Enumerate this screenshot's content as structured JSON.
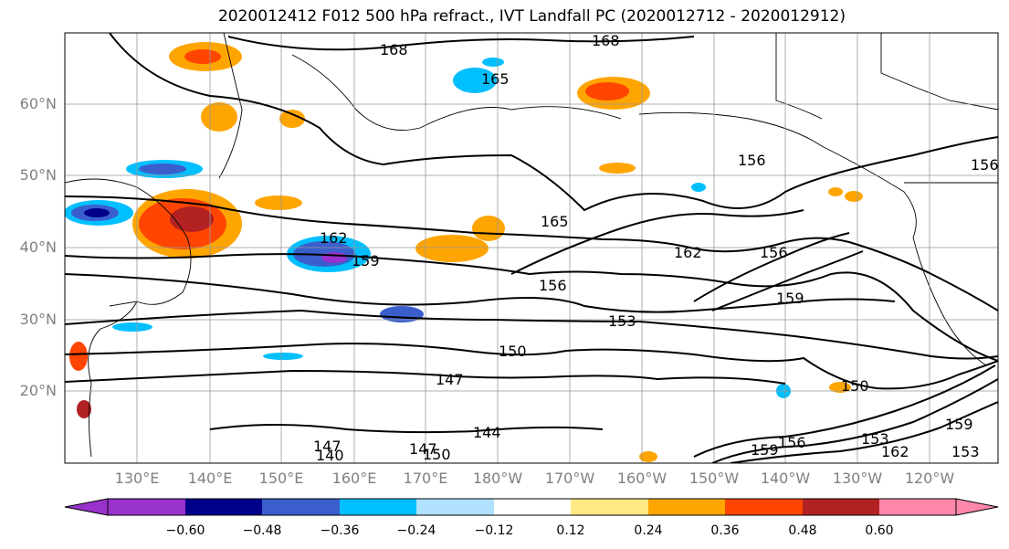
{
  "title": "2020012412 F012 500 hPa refract., IVT Landfall PC (2020012712 - 2020012912)",
  "map": {
    "lat_labels": [
      "60°N",
      "50°N",
      "40°N",
      "30°N",
      "20°N"
    ],
    "lon_labels": [
      "130°E",
      "140°E",
      "150°E",
      "160°E",
      "170°E",
      "180°W",
      "170°W",
      "160°W",
      "150°W",
      "140°W",
      "130°W",
      "120°W"
    ],
    "contour_labels": [
      "168",
      "168",
      "165",
      "156",
      "165",
      "162",
      "159",
      "162",
      "156",
      "156",
      "159",
      "153",
      "150",
      "147",
      "150",
      "144",
      "147",
      "140",
      "147",
      "150",
      "159",
      "156",
      "153",
      "162",
      "159",
      "153",
      "156"
    ]
  },
  "colorbar": {
    "ticks": [
      "−0.60",
      "−0.48",
      "−0.36",
      "−0.24",
      "−0.12",
      "0.12",
      "0.24",
      "0.36",
      "0.48",
      "0.60"
    ],
    "colors": [
      "#9932cc",
      "#00008b",
      "#3a5fcd",
      "#00bfff",
      "#b0e2ff",
      "#ffffff",
      "#ffe985",
      "#ffa500",
      "#ff4500",
      "#b22222",
      "#ff88aa"
    ]
  }
}
